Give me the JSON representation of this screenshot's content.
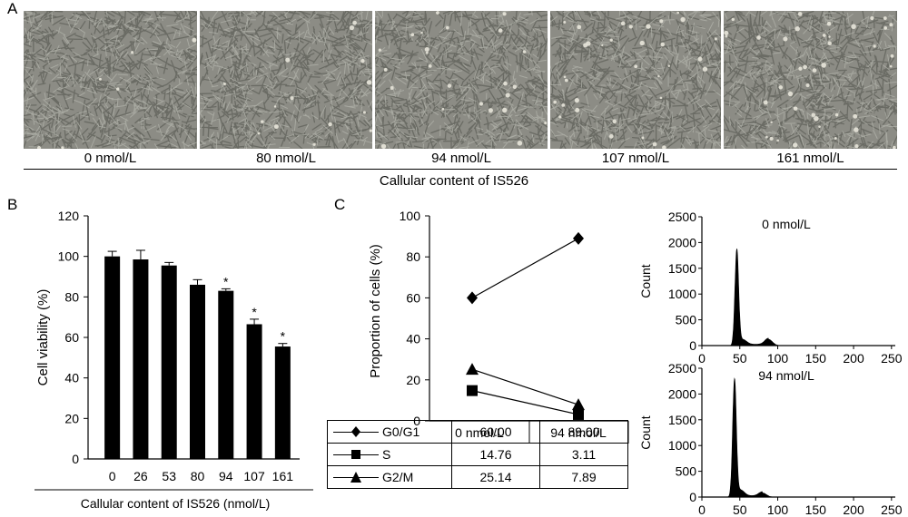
{
  "panel_labels": {
    "a": "A",
    "b": "B",
    "c": "C"
  },
  "panel_a": {
    "micrographs": [
      "0 nmol/L",
      "80 nmol/L",
      "94 nmol/L",
      "107 nmol/L",
      "161 nmol/L"
    ],
    "axis_label": "Callular content of IS526"
  },
  "chart_data": [
    {
      "type": "bar",
      "panel": "B",
      "categories": [
        "0",
        "26",
        "53",
        "80",
        "94",
        "107",
        "161"
      ],
      "values": [
        100,
        98.5,
        95.5,
        86,
        83,
        66.5,
        55.5
      ],
      "errors": [
        2.5,
        4.5,
        1.5,
        2.5,
        1,
        2.5,
        1.5
      ],
      "significance": [
        "",
        "",
        "",
        "",
        "*",
        "*",
        "*"
      ],
      "ylabel": "Cell viability (%)",
      "xlabel": "Callular content of IS526 (nmol/L)",
      "ylim": [
        0,
        120
      ],
      "yticks": [
        0,
        20,
        40,
        60,
        80,
        100,
        120
      ],
      "bar_color": "#000000"
    },
    {
      "type": "line",
      "panel": "C",
      "categories": [
        "0 nmol/L",
        "94 nmol/L"
      ],
      "ylabel": "Proportion of cells (%)",
      "ylim": [
        0,
        100
      ],
      "yticks": [
        0,
        20,
        40,
        60,
        80,
        100
      ],
      "series": [
        {
          "name": "G0/G1",
          "marker": "diamond",
          "values": [
            60.0,
            89.0
          ],
          "labels": [
            "60.00",
            "89.00"
          ]
        },
        {
          "name": "S",
          "marker": "square",
          "values": [
            14.76,
            3.11
          ],
          "labels": [
            "14.76",
            "3.11"
          ]
        },
        {
          "name": "G2/M",
          "marker": "triangle",
          "values": [
            25.14,
            7.89
          ],
          "labels": [
            "25.14",
            "7.89"
          ]
        }
      ]
    },
    {
      "type": "area",
      "panel": "C-histogram-top",
      "title": "0 nmol/L",
      "ylabel": "Count",
      "xlim": [
        0,
        255
      ],
      "ylim": [
        0,
        2500
      ],
      "xticks": [
        0,
        50,
        100,
        150,
        200,
        250
      ],
      "yticks": [
        0,
        500,
        1000,
        1500,
        2000,
        2500
      ],
      "peaks": [
        {
          "x": 46,
          "y": 1850
        },
        {
          "x": 88,
          "y": 120
        }
      ]
    },
    {
      "type": "area",
      "panel": "C-histogram-bottom",
      "title": "94 nmol/L",
      "ylabel": "Count",
      "xlim": [
        0,
        255
      ],
      "ylim": [
        0,
        2500
      ],
      "xticks": [
        0,
        50,
        100,
        150,
        200,
        250
      ],
      "yticks": [
        0,
        500,
        1000,
        1500,
        2000,
        2500
      ],
      "peaks": [
        {
          "x": 43,
          "y": 2270
        },
        {
          "x": 80,
          "y": 80
        }
      ]
    }
  ]
}
